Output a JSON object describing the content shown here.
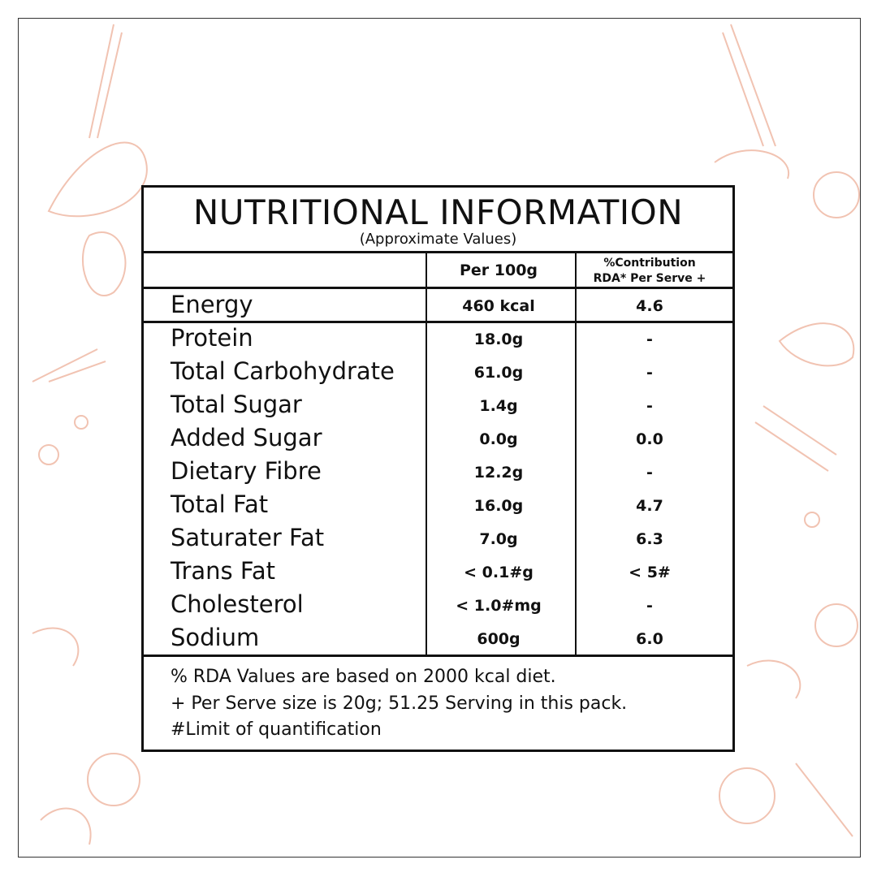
{
  "header": {
    "title": "NUTRITIONAL INFORMATION",
    "subtitle": "(Approximate Values)"
  },
  "table": {
    "columns": [
      "Per 100g",
      [
        "%Contribution",
        "RDA* Per Serve +"
      ]
    ],
    "energy": [
      "Energy",
      "460 kcal",
      "4.6"
    ],
    "rows": [
      [
        "Protein",
        "18.0g",
        "-"
      ],
      [
        "Total Carbohydrate",
        "61.0g",
        "-"
      ],
      [
        "Total Sugar",
        "1.4g",
        "-"
      ],
      [
        "Added Sugar",
        "0.0g",
        "0.0"
      ],
      [
        "Dietary Fibre",
        "12.2g",
        "-"
      ],
      [
        "Total Fat",
        "16.0g",
        "4.7"
      ],
      [
        "Saturater Fat",
        "7.0g",
        "6.3"
      ],
      [
        "Trans Fat",
        "< 0.1#g",
        "< 5#"
      ],
      [
        "Cholesterol",
        "< 1.0#mg",
        "-"
      ],
      [
        "Sodium",
        "600g",
        "6.0"
      ]
    ]
  },
  "footnotes": [
    "% RDA Values are based on 2000 kcal diet.",
    "+ Per Serve size is 20g; 51.25 Serving in this pack.",
    "#Limit of quantification"
  ]
}
